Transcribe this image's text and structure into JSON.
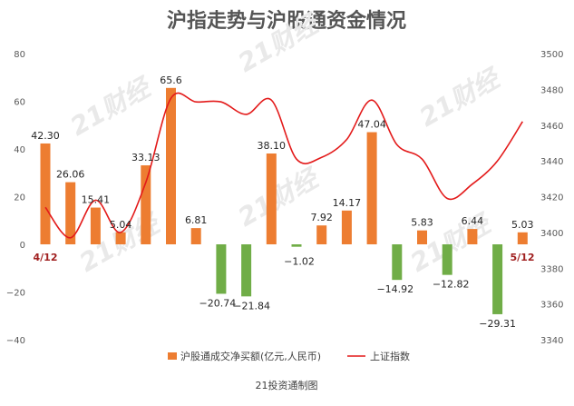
{
  "chart_data": {
    "type": "bar",
    "title": "沪指走势与沪股通资金情况",
    "source": "21投资通制图",
    "watermark": "21财经",
    "categories_start": "4/12",
    "categories_end": "5/12",
    "series": [
      {
        "name": "沪股通成交净买额(亿元,人民币)",
        "type": "bar",
        "axis": "left",
        "positive_color": "#ed7d31",
        "negative_color": "#70ad47",
        "values": [
          42.3,
          26.06,
          15.41,
          5.04,
          33.13,
          65.6,
          6.81,
          -20.74,
          -21.84,
          38.1,
          -1.02,
          7.92,
          14.17,
          47.04,
          -14.92,
          5.83,
          -12.82,
          6.44,
          -29.31,
          5.03
        ],
        "labels": [
          "42.30",
          "26.06",
          "15.41",
          "5.04",
          "33.13",
          "65.6",
          "6.81",
          "−20.74",
          "−21.84",
          "38.10",
          "−1.02",
          "7.92",
          "14.17",
          "47.04",
          "−14.92",
          "5.83",
          "−12.82",
          "6.44",
          "−29.31",
          "5.03"
        ]
      },
      {
        "name": "上证指数",
        "type": "line",
        "axis": "right",
        "color": "#e31a1a",
        "values": [
          3414,
          3397,
          3418,
          3400,
          3428,
          3475,
          3473,
          3473,
          3466,
          3474,
          3441,
          3442,
          3452,
          3474,
          3449,
          3441,
          3419,
          3427,
          3440,
          3462
        ]
      }
    ],
    "y_left": {
      "min": -40,
      "max": 80,
      "ticks": [
        "−40",
        "−20",
        "0",
        "20",
        "40",
        "60",
        "80"
      ],
      "tick_values": [
        -40,
        -20,
        0,
        20,
        40,
        60,
        80
      ]
    },
    "y_right": {
      "min": 3340,
      "max": 3500,
      "ticks": [
        "3340",
        "3360",
        "3380",
        "3400",
        "3420",
        "3440",
        "3460",
        "3480",
        "3500"
      ],
      "tick_values": [
        3340,
        3360,
        3380,
        3400,
        3420,
        3440,
        3460,
        3480,
        3500
      ]
    },
    "grid": false,
    "legend_position": "bottom"
  }
}
